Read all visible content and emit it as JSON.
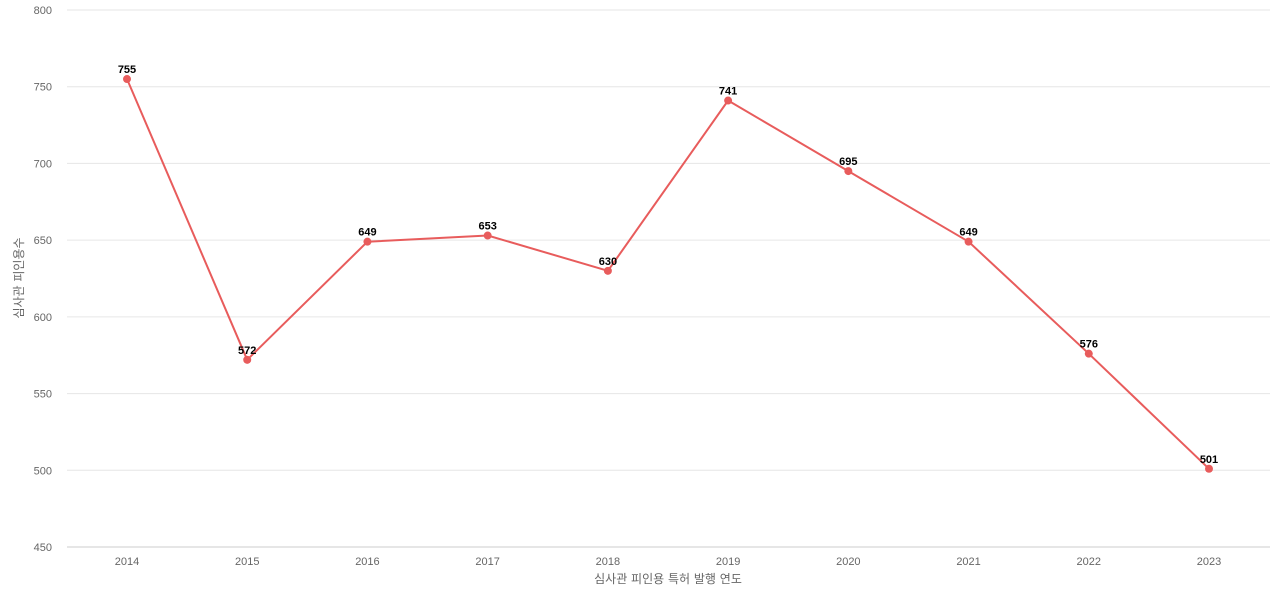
{
  "chart_data": {
    "type": "line",
    "title": "",
    "xlabel": "심사관 피인용 특허 발행 연도",
    "ylabel": "심사관 피인용수",
    "categories": [
      "2014",
      "2015",
      "2016",
      "2017",
      "2018",
      "2019",
      "2020",
      "2021",
      "2022",
      "2023"
    ],
    "series": [
      {
        "values": [
          755,
          572,
          649,
          653,
          630,
          741,
          695,
          649,
          576,
          501
        ],
        "color": "#e85c5c"
      }
    ],
    "ylim": [
      450,
      800
    ],
    "yticks": [
      450,
      500,
      550,
      600,
      650,
      700,
      750,
      800
    ],
    "grid": true,
    "data_labels": true,
    "legend": "none"
  }
}
